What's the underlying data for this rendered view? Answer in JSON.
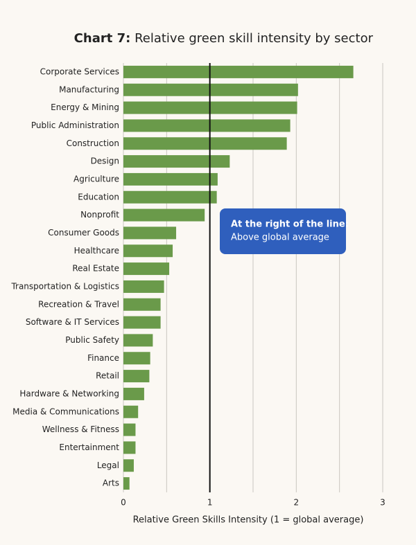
{
  "chart_data": {
    "type": "bar",
    "orientation": "horizontal",
    "title_prefix": "Chart 7:",
    "title": "Relative green skill intensity by sector",
    "x_label": "Relative Green Skills Intensity (1 = global average)",
    "annotation": {
      "heading": "At the right of the line:",
      "text": "Above global average",
      "color": "#2f5fbd"
    },
    "reference_line": 1,
    "categories": [
      "Corporate Services",
      "Manufacturing",
      "Energy & Mining",
      "Public Administration",
      "Construction",
      "Design",
      "Agriculture",
      "Education",
      "Nonprofit",
      "Consumer Goods",
      "Healthcare",
      "Real Estate",
      "Transportation & Logistics",
      "Recreation & Travel",
      "Software & IT Services",
      "Public Safety",
      "Finance",
      "Retail",
      "Hardware & Networking",
      "Media & Communications",
      "Wellness & Fitness",
      "Entertainment",
      "Legal",
      "Arts"
    ],
    "values": [
      2.66,
      2.02,
      2.01,
      1.93,
      1.89,
      1.23,
      1.09,
      1.08,
      0.94,
      0.61,
      0.57,
      0.53,
      0.47,
      0.43,
      0.43,
      0.34,
      0.31,
      0.3,
      0.24,
      0.17,
      0.14,
      0.14,
      0.12,
      0.07
    ],
    "color": "#6a9a4a",
    "xlim": [
      0,
      3
    ],
    "xticks": [
      0,
      1,
      2,
      3
    ],
    "minor_grid": [
      0.5,
      1.5,
      2.5
    ],
    "grid": true
  }
}
